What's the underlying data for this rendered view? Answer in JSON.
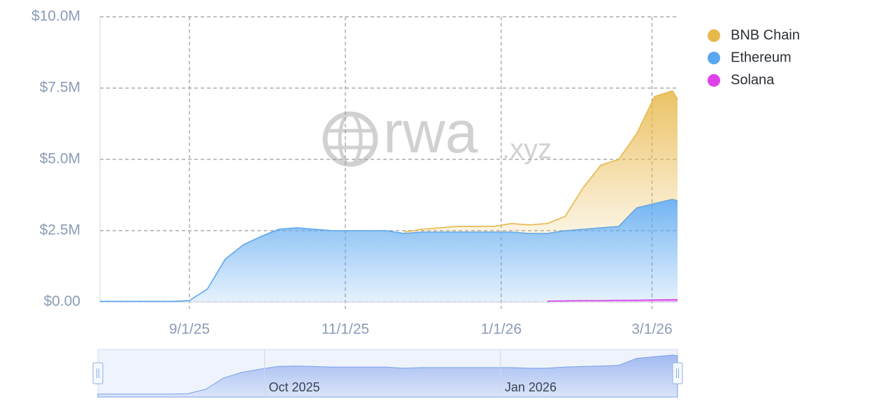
{
  "chart_data": {
    "type": "stacked-area",
    "watermark": {
      "brand": "rwa",
      "suffix": ".xyz"
    },
    "x": [
      "2025-07-28",
      "2025-08-04",
      "2025-08-11",
      "2025-08-18",
      "2025-08-25",
      "2025-09-01",
      "2025-09-08",
      "2025-09-15",
      "2025-09-22",
      "2025-09-29",
      "2025-10-06",
      "2025-10-13",
      "2025-10-20",
      "2025-10-27",
      "2025-11-03",
      "2025-11-10",
      "2025-11-17",
      "2025-11-24",
      "2025-12-01",
      "2025-12-08",
      "2025-12-15",
      "2025-12-22",
      "2025-12-29",
      "2026-01-05",
      "2026-01-12",
      "2026-01-19",
      "2026-01-26",
      "2026-02-02",
      "2026-02-09",
      "2026-02-16",
      "2026-02-23",
      "2026-03-02",
      "2026-03-09",
      "2026-03-11"
    ],
    "series": [
      {
        "name": "Solana",
        "color": "#e040e8",
        "values": [
          null,
          null,
          null,
          null,
          null,
          null,
          null,
          null,
          null,
          null,
          null,
          null,
          null,
          null,
          null,
          null,
          null,
          null,
          null,
          null,
          null,
          null,
          null,
          null,
          null,
          30000,
          40000,
          50000,
          50000,
          60000,
          60000,
          70000,
          80000,
          80000
        ]
      },
      {
        "name": "Ethereum",
        "color": "#5aa7f0",
        "values": [
          20000,
          20000,
          20000,
          20000,
          20000,
          50000,
          450000,
          1500000,
          2000000,
          2300000,
          2550000,
          2600000,
          2550000,
          2500000,
          2500000,
          2500000,
          2500000,
          2400000,
          2450000,
          2450000,
          2450000,
          2450000,
          2450000,
          2450000,
          2400000,
          2370000,
          2460000,
          2500000,
          2550000,
          2590000,
          3240000,
          3380000,
          3520000,
          3470000
        ]
      },
      {
        "name": "BNB Chain",
        "color": "#e8b84a",
        "values": [
          null,
          null,
          null,
          null,
          null,
          null,
          null,
          null,
          null,
          null,
          null,
          null,
          null,
          null,
          null,
          null,
          null,
          50000,
          100000,
          150000,
          200000,
          200000,
          200000,
          300000,
          300000,
          350000,
          500000,
          1450000,
          2200000,
          2350000,
          2600000,
          3750000,
          3800000,
          3550000
        ]
      }
    ],
    "legend_order": [
      "BNB Chain",
      "Ethereum",
      "Solana"
    ],
    "xlim": [
      "2025-07-28",
      "2026-03-11"
    ],
    "xticks": [
      {
        "value": "2025-09-01",
        "label": "9/1/25"
      },
      {
        "value": "2025-11-01",
        "label": "11/1/25"
      },
      {
        "value": "2026-01-01",
        "label": "1/1/26"
      },
      {
        "value": "2026-03-01",
        "label": "3/1/26"
      }
    ],
    "ylim": [
      0,
      10000000
    ],
    "yticks": [
      {
        "value": 0,
        "label": "$0.00"
      },
      {
        "value": 2500000,
        "label": "$2.5M"
      },
      {
        "value": 5000000,
        "label": "$5.0M"
      },
      {
        "value": 7500000,
        "label": "$7.5M"
      },
      {
        "value": 10000000,
        "label": "$10.0M"
      }
    ],
    "grid": true,
    "navigator_ticks": [
      {
        "value": "2025-10-01",
        "label": "Oct 2025"
      },
      {
        "value": "2026-01-01",
        "label": "Jan 2026"
      }
    ]
  }
}
